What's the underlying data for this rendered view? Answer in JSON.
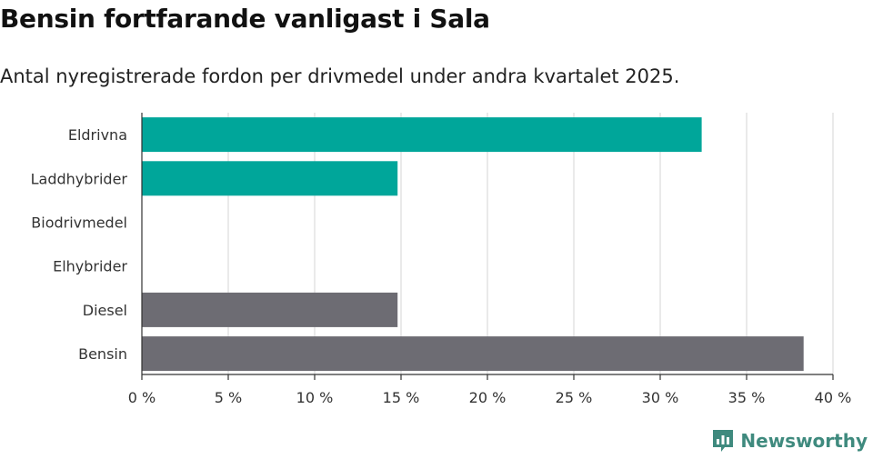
{
  "title": "Bensin fortfarande vanligast i Sala",
  "subtitle": "Antal nyregistrerade fordon per drivmedel under andra kvartalet 2025.",
  "brand": {
    "name": "Newsworthy",
    "color": "#3f8a7e"
  },
  "colors": {
    "electric": "#00a69a",
    "fossil": "#6d6c73",
    "grid": "#dddddd",
    "axis": "#333333"
  },
  "chart_data": {
    "type": "bar",
    "orientation": "horizontal",
    "categories": [
      "Eldrivna",
      "Laddhybrider",
      "Biodrivmedel",
      "Elhybrider",
      "Diesel",
      "Bensin"
    ],
    "values": [
      32.4,
      14.8,
      0,
      0,
      14.8,
      38.3
    ],
    "bar_colors": [
      "#00a69a",
      "#00a69a",
      "#00a69a",
      "#00a69a",
      "#6d6c73",
      "#6d6c73"
    ],
    "xlim": [
      0,
      40
    ],
    "xticks": [
      0,
      5,
      10,
      15,
      20,
      25,
      30,
      35,
      40
    ],
    "xtick_labels": [
      "0 %",
      "5 %",
      "10 %",
      "15 %",
      "20 %",
      "25 %",
      "30 %",
      "35 %",
      "40 %"
    ],
    "grid": true,
    "xlabel": "",
    "ylabel": ""
  }
}
